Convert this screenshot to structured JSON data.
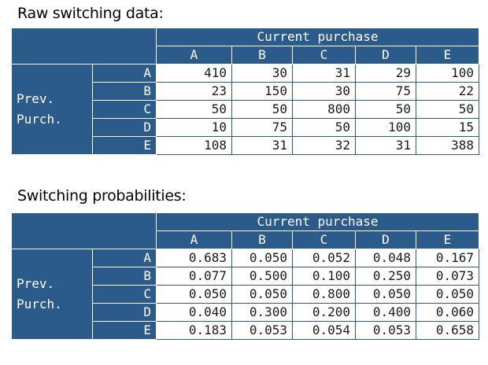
{
  "raw": {
    "heading": "Raw switching data:",
    "col_group_label": "Current purchase",
    "row_group_label_line1": "Prev.",
    "row_group_label_line2": "Purch.",
    "columns": [
      "A",
      "B",
      "C",
      "D",
      "E"
    ],
    "rows": [
      {
        "label": "A",
        "values": [
          "410",
          "30",
          "31",
          "29",
          "100"
        ]
      },
      {
        "label": "B",
        "values": [
          "23",
          "150",
          "30",
          "75",
          "22"
        ]
      },
      {
        "label": "C",
        "values": [
          "50",
          "50",
          "800",
          "50",
          "50"
        ]
      },
      {
        "label": "D",
        "values": [
          "10",
          "75",
          "50",
          "100",
          "15"
        ]
      },
      {
        "label": "E",
        "values": [
          "108",
          "31",
          "32",
          "31",
          "388"
        ]
      }
    ]
  },
  "prob": {
    "heading": "Switching probabilities:",
    "col_group_label": "Current purchase",
    "row_group_label_line1": "Prev.",
    "row_group_label_line2": "Purch.",
    "columns": [
      "A",
      "B",
      "C",
      "D",
      "E"
    ],
    "rows": [
      {
        "label": "A",
        "values": [
          "0.683",
          "0.050",
          "0.052",
          "0.048",
          "0.167"
        ]
      },
      {
        "label": "B",
        "values": [
          "0.077",
          "0.500",
          "0.100",
          "0.250",
          "0.073"
        ]
      },
      {
        "label": "C",
        "values": [
          "0.050",
          "0.050",
          "0.800",
          "0.050",
          "0.050"
        ]
      },
      {
        "label": "D",
        "values": [
          "0.040",
          "0.300",
          "0.200",
          "0.400",
          "0.060"
        ]
      },
      {
        "label": "E",
        "values": [
          "0.183",
          "0.053",
          "0.054",
          "0.053",
          "0.658"
        ]
      }
    ]
  },
  "colors": {
    "header_blue": "#2a5b8a",
    "text": "#1a1a1a"
  }
}
